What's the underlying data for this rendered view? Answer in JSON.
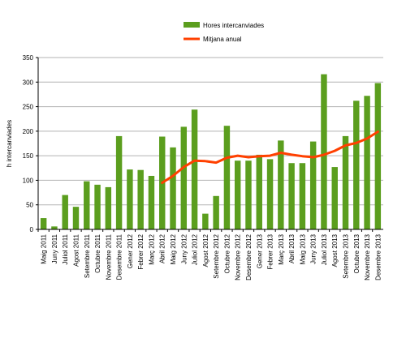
{
  "colors": {
    "bar": "#5b9e1e",
    "line": "#ff4000",
    "grid": "#b3b3b3",
    "axis": "#000000"
  },
  "chart_data": {
    "type": "bar",
    "title": "",
    "xlabel": "",
    "ylabel": "h intercanviades",
    "ylim": [
      0,
      350
    ],
    "yticks": [
      0,
      50,
      100,
      150,
      200,
      250,
      300,
      350
    ],
    "grid": "horizontal",
    "legend_placement": "top-center",
    "categories": [
      "Maig 2011",
      "Juny 2011",
      "Juliol 2011",
      "Agost 2011",
      "Setembre 2011",
      "Octubre 2011",
      "Novembre 2011",
      "Desembre 2011",
      "Gener 2012",
      "Febrer 2012",
      "Març 2012",
      "Abril 2012",
      "Maig 2012",
      "Juny 2012",
      "Juliol 2012",
      "Agost 2012",
      "Setembre 2012",
      "Octubre 2012",
      "Novembre 2012",
      "Desembre 2012",
      "Gener 2013",
      "Febrer 2013",
      "Març 2013",
      "Abril 2013",
      "Maig 2013",
      "Juny 2013",
      "Juliol 2013",
      "Agost 2013",
      "Setembre 2013",
      "Octubre 2013",
      "Novembre 2013",
      "Desembre 2013"
    ],
    "series": [
      {
        "name": "Hores intercanviades",
        "type": "bar",
        "values": [
          23,
          6,
          70,
          46,
          98,
          91,
          86,
          190,
          122,
          121,
          109,
          189,
          167,
          209,
          244,
          32,
          68,
          211,
          140,
          140,
          152,
          143,
          181,
          135,
          135,
          179,
          316,
          127,
          190,
          262,
          272,
          298
        ]
      },
      {
        "name": "Mitjana anual",
        "type": "line",
        "values": [
          null,
          null,
          null,
          null,
          null,
          null,
          null,
          null,
          null,
          null,
          null,
          95,
          109,
          127,
          140,
          139,
          136,
          146,
          150,
          147,
          149,
          150,
          156,
          152,
          149,
          147,
          152,
          160,
          171,
          176,
          185,
          199
        ]
      }
    ]
  }
}
